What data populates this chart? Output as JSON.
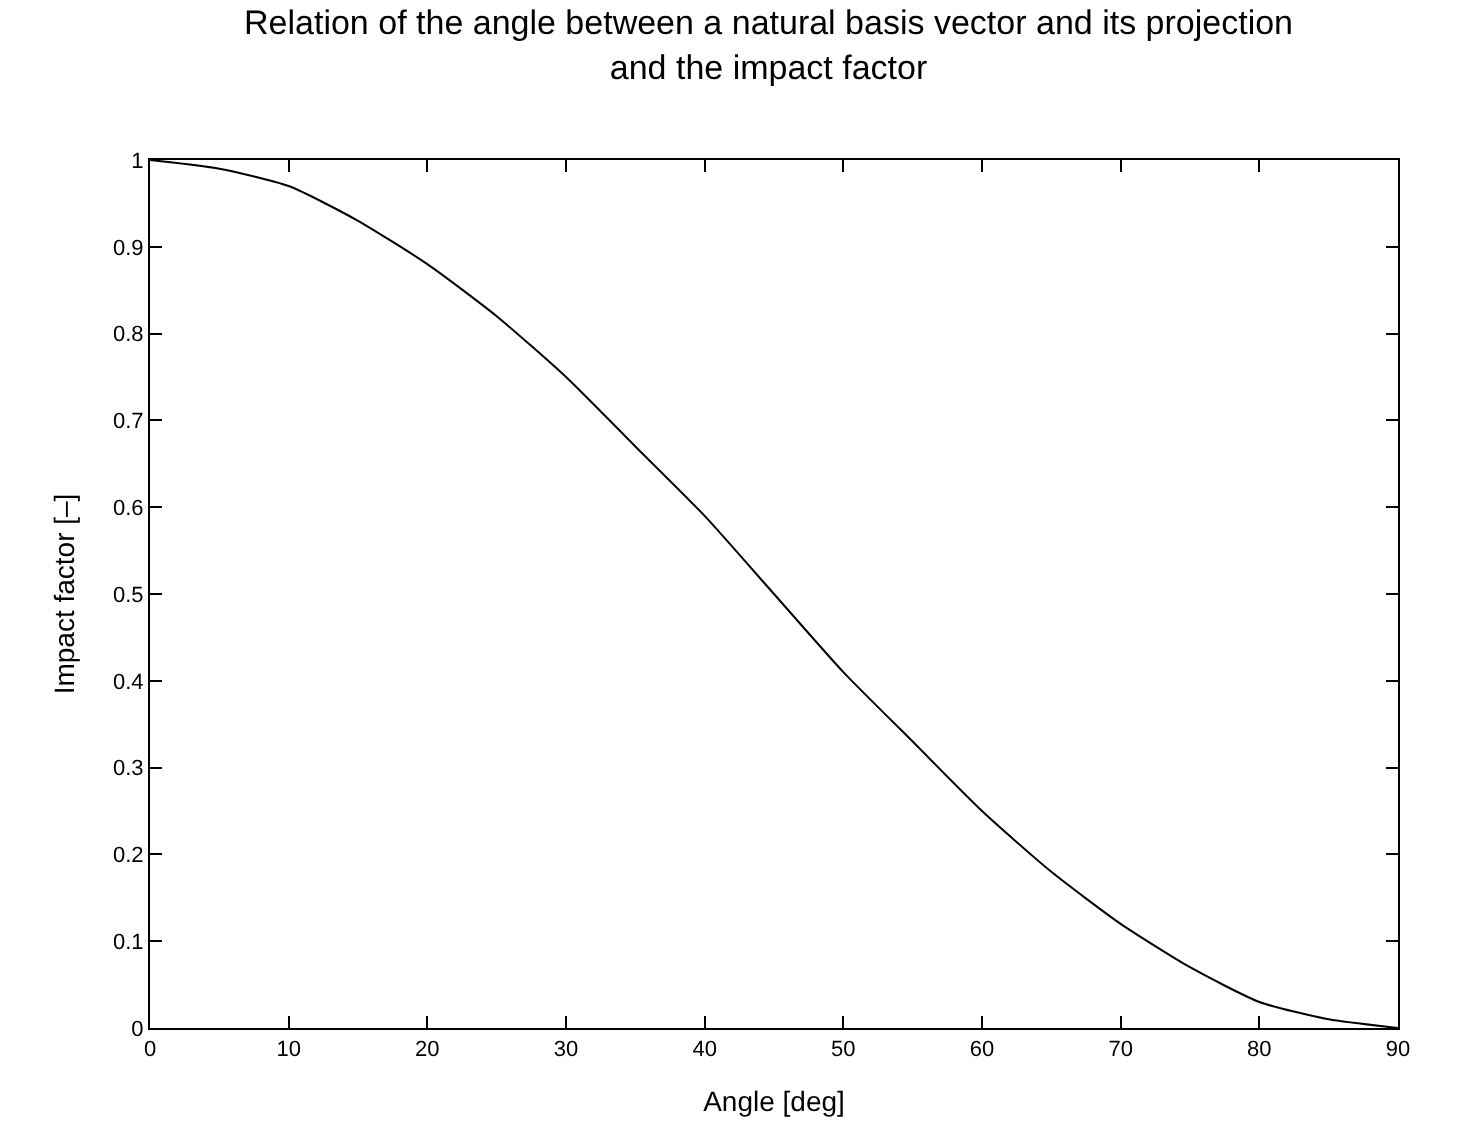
{
  "chart_data": {
    "type": "line",
    "title": "Relation of the angle between a natural basis vector and its projection\nand the impact factor",
    "xlabel": "Angle [deg]",
    "ylabel": "Impact factor [–]",
    "x": [
      0,
      5,
      10,
      15,
      20,
      25,
      30,
      35,
      40,
      45,
      50,
      55,
      60,
      65,
      70,
      75,
      80,
      85,
      90
    ],
    "series": [
      {
        "color": "#000000",
        "values": [
          1,
          0.99,
          0.97,
          0.93,
          0.88,
          0.82,
          0.75,
          0.67,
          0.59,
          0.5,
          0.41,
          0.33,
          0.25,
          0.18,
          0.12,
          0.07,
          0.03,
          0.01,
          0
        ]
      }
    ],
    "xlim": [
      0,
      90
    ],
    "xticks": [
      0,
      10,
      20,
      30,
      40,
      50,
      60,
      70,
      80,
      90
    ],
    "ylim": [
      0,
      1
    ],
    "yticks": [
      0,
      0.1,
      0.2,
      0.3,
      0.4,
      0.5,
      0.6,
      0.7,
      0.8,
      0.9,
      1
    ],
    "marker": "none",
    "line_style": "solid"
  }
}
